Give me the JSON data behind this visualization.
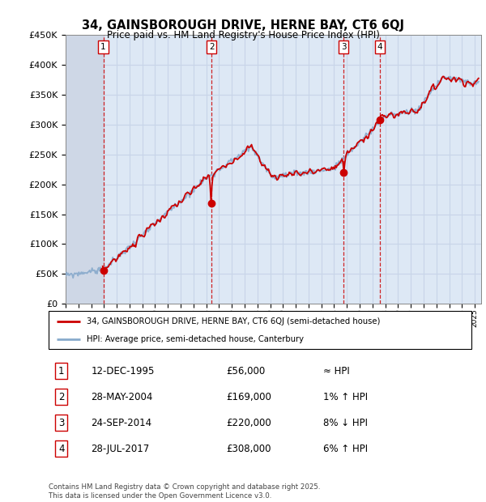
{
  "title": "34, GAINSBOROUGH DRIVE, HERNE BAY, CT6 6QJ",
  "subtitle": "Price paid vs. HM Land Registry's House Price Index (HPI)",
  "ylim": [
    0,
    450000
  ],
  "yticks": [
    0,
    50000,
    100000,
    150000,
    200000,
    250000,
    300000,
    350000,
    400000,
    450000
  ],
  "xlim_start": 1993.0,
  "xlim_end": 2025.5,
  "sale_dates": [
    1995.95,
    2004.41,
    2014.73,
    2017.57
  ],
  "sale_prices": [
    56000,
    169000,
    220000,
    308000
  ],
  "sale_labels": [
    "1",
    "2",
    "3",
    "4"
  ],
  "sale_date_strs": [
    "12-DEC-1995",
    "28-MAY-2004",
    "24-SEP-2014",
    "28-JUL-2017"
  ],
  "sale_price_strs": [
    "£56,000",
    "£169,000",
    "£220,000",
    "£308,000"
  ],
  "sale_hpi_strs": [
    "≈ HPI",
    "1% ↑ HPI",
    "8% ↓ HPI",
    "6% ↑ HPI"
  ],
  "legend_line1": "34, GAINSBOROUGH DRIVE, HERNE BAY, CT6 6QJ (semi-detached house)",
  "legend_line2": "HPI: Average price, semi-detached house, Canterbury",
  "footer": "Contains HM Land Registry data © Crown copyright and database right 2025.\nThis data is licensed under the Open Government Licence v3.0.",
  "red_color": "#cc0000",
  "blue_color": "#88aacc",
  "grid_color": "#c8d4e8",
  "bg_color": "#ffffff",
  "plot_bg": "#dde8f5"
}
